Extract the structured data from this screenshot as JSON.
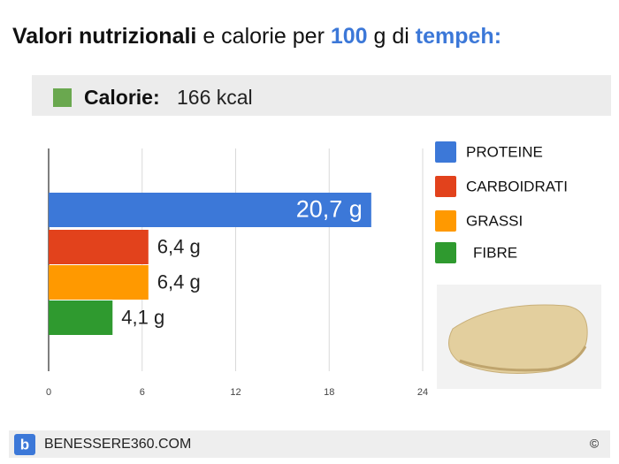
{
  "header": {
    "title": [
      "Valori nutrizionali",
      "e calorie per",
      "100",
      "g di",
      "tempeh:"
    ],
    "calories_label": "Calorie:",
    "calories": "166 kcal"
  },
  "chart_data": {
    "type": "bar",
    "orientation": "horizontal",
    "categories": [
      "PROTEINE",
      "CARBOIDRATI",
      "GRASSI",
      "FIBRE"
    ],
    "values": [
      20.7,
      6.4,
      6.4,
      4.1
    ],
    "value_labels": [
      "20,7 g",
      "6,4 g",
      "6,4 g",
      "4,1 g"
    ],
    "colors": [
      "#3c78d8",
      "#e2421c",
      "#ff9900",
      "#2f9a2f"
    ],
    "xlim": [
      0,
      24
    ],
    "xticks": [
      0,
      6,
      12,
      18,
      24
    ],
    "grid": true,
    "legend": "right"
  },
  "footer": {
    "site": "BENESSERE360.COM",
    "copyright": "©"
  }
}
